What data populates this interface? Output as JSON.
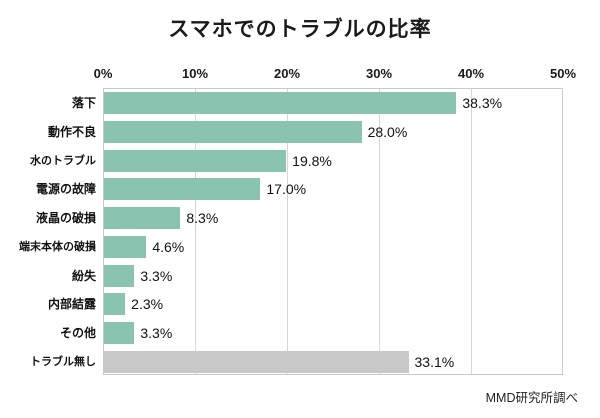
{
  "title": "スマホでのトラブルの比率",
  "source": "MMD研究所調べ",
  "colors": {
    "bar": "#8ac4b1",
    "bar_neutral": "#c8c8c8",
    "grid": "#d6d6d6",
    "border": "#c9c9c9",
    "text": "#1a1a1a"
  },
  "chart_data": {
    "type": "bar",
    "orientation": "horizontal",
    "title": "スマホでのトラブルの比率",
    "xlabel": "",
    "ylabel": "",
    "xlim": [
      0,
      50
    ],
    "x_ticks": [
      "0%",
      "10%",
      "20%",
      "30%",
      "40%",
      "50%"
    ],
    "x_tick_values": [
      0,
      10,
      20,
      30,
      40,
      50
    ],
    "tick_position": "top",
    "grid": true,
    "legend": false,
    "categories": [
      "落下",
      "動作不良",
      "水のトラブル",
      "電源の故障",
      "液晶の破損",
      "端末本体の破損",
      "紛失",
      "内部結露",
      "その他",
      "トラブル無し"
    ],
    "values": [
      38.3,
      28.0,
      19.8,
      17.0,
      8.3,
      4.6,
      3.3,
      2.3,
      3.3,
      33.1
    ],
    "value_labels": [
      "38.3%",
      "28.0%",
      "19.8%",
      "17.0%",
      "8.3%",
      "4.6%",
      "3.3%",
      "2.3%",
      "3.3%",
      "33.1%"
    ],
    "neutral_indices": [
      9
    ],
    "annotation": "MMD研究所調べ"
  }
}
